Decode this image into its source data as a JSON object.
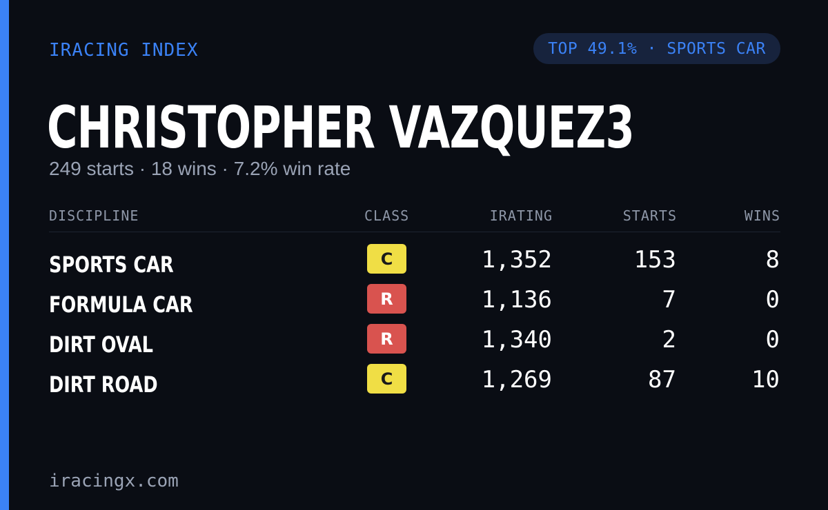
{
  "colors": {
    "background": "#0a0d14",
    "accent": "#3b82f6",
    "badge_bg": "#17233d",
    "class_c": "#f0de45",
    "class_c_text": "#1a1a1a",
    "class_r": "#d9534f",
    "class_r_text": "#ffffff"
  },
  "header": {
    "brand": "IRACING INDEX",
    "top_badge": "TOP 49.1% · SPORTS CAR"
  },
  "driver": {
    "name": "CHRISTOPHER VAZQUEZ3",
    "summary": "249 starts · 18 wins · 7.2% win rate"
  },
  "table": {
    "columns": {
      "discipline": "DISCIPLINE",
      "class": "CLASS",
      "irating": "IRATING",
      "starts": "STARTS",
      "wins": "WINS"
    },
    "rows": [
      {
        "discipline": "SPORTS CAR",
        "class": "C",
        "irating": "1,352",
        "starts": "153",
        "wins": "8"
      },
      {
        "discipline": "FORMULA CAR",
        "class": "R",
        "irating": "1,136",
        "starts": "7",
        "wins": "0"
      },
      {
        "discipline": "DIRT OVAL",
        "class": "R",
        "irating": "1,340",
        "starts": "2",
        "wins": "0"
      },
      {
        "discipline": "DIRT ROAD",
        "class": "C",
        "irating": "1,269",
        "starts": "87",
        "wins": "10"
      }
    ]
  },
  "footer": {
    "site": "iracingx.com"
  }
}
